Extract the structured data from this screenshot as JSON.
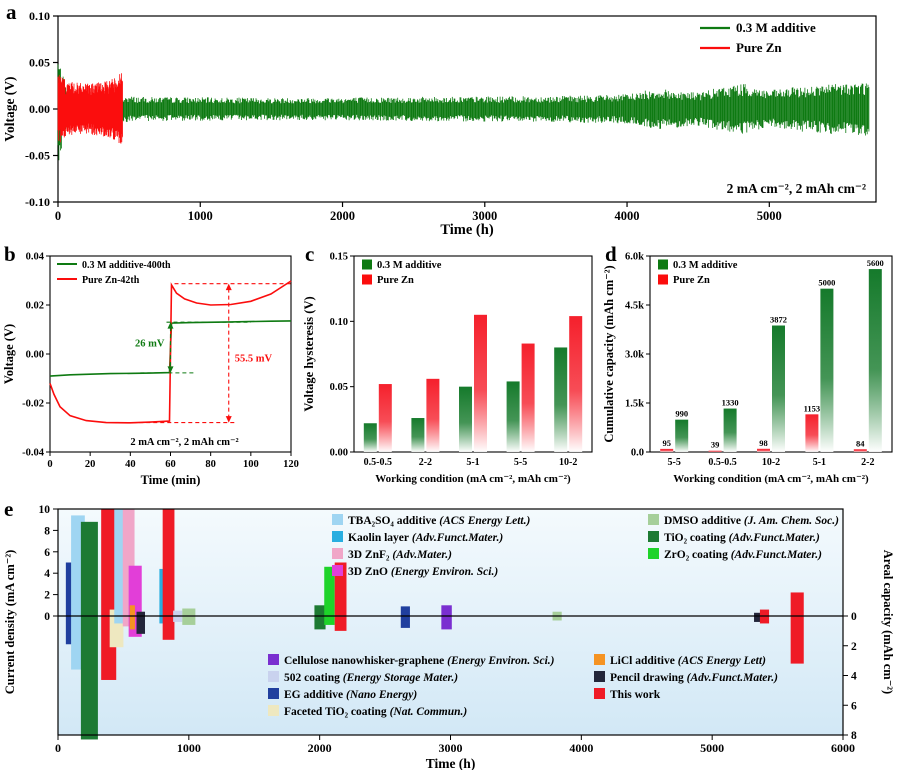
{
  "panel_letters": {
    "a": "a",
    "b": "b",
    "c": "c",
    "d": "d",
    "e": "e"
  },
  "chart_data": [
    {
      "id": "a",
      "type": "line",
      "xlabel": "Time (h)",
      "ylabel": "Voltage (V)",
      "xlim": [
        0,
        5750
      ],
      "ylim": [
        -0.1,
        0.1
      ],
      "xticks": [
        0,
        1000,
        2000,
        3000,
        4000,
        5000
      ],
      "yticks": [
        0.1,
        0.05,
        0.0,
        -0.05,
        -0.1
      ],
      "legend": [
        {
          "label": "0.3 M additive",
          "color": "#0e7a12"
        },
        {
          "label": "Pure Zn",
          "color": "#fb0d0d"
        }
      ],
      "annotation": "2 mA cm⁻², 2 mAh cm⁻²",
      "series": [
        {
          "name": "0.3 M additive",
          "color": "#0e7a12",
          "envelope": [
            [
              0,
              0.06
            ],
            [
              20,
              0.045
            ],
            [
              60,
              0.02
            ],
            [
              150,
              0.017
            ],
            [
              400,
              0.015
            ],
            [
              600,
              0.013
            ],
            [
              1500,
              0.012
            ],
            [
              2500,
              0.013
            ],
            [
              3500,
              0.014
            ],
            [
              4000,
              0.016
            ],
            [
              4200,
              0.022
            ],
            [
              4500,
              0.018
            ],
            [
              4800,
              0.028
            ],
            [
              5000,
              0.02
            ],
            [
              5200,
              0.024
            ],
            [
              5500,
              0.028
            ],
            [
              5700,
              0.03
            ]
          ]
        },
        {
          "name": "Pure Zn",
          "color": "#fb0d0d",
          "envelope": [
            [
              0,
              0.04
            ],
            [
              60,
              0.03
            ],
            [
              200,
              0.027
            ],
            [
              350,
              0.03
            ],
            [
              430,
              0.038
            ],
            [
              455,
              0.042
            ]
          ]
        }
      ]
    },
    {
      "id": "b",
      "type": "line",
      "xlabel": "Time (min)",
      "ylabel": "Voltage (V)",
      "xlim": [
        0,
        120
      ],
      "ylim": [
        -0.04,
        0.04
      ],
      "xticks": [
        0,
        20,
        40,
        60,
        80,
        100,
        120
      ],
      "yticks": [
        0.04,
        0.02,
        0.0,
        -0.02,
        -0.04
      ],
      "legend": [
        {
          "label": "0.3 M additive-400th",
          "color": "#0e7a12"
        },
        {
          "label": "Pure Zn-42th",
          "color": "#fb0d0d"
        }
      ],
      "annotation": "2 mA cm⁻², 2 mAh cm⁻²",
      "annotations": {
        "green_gap": "26 mV",
        "red_gap": "55.5 mV"
      },
      "series": [
        {
          "name": "0.3 M additive-400th",
          "color": "#0e7a12",
          "points": [
            [
              0,
              -0.009
            ],
            [
              10,
              -0.0085
            ],
            [
              30,
              -0.008
            ],
            [
              50,
              -0.0078
            ],
            [
              59.5,
              -0.0076
            ],
            [
              60.5,
              0.0126
            ],
            [
              70,
              0.0128
            ],
            [
              90,
              0.0131
            ],
            [
              110,
              0.0134
            ],
            [
              120,
              0.0135
            ]
          ]
        },
        {
          "name": "Pure Zn-42th",
          "color": "#fb0d0d",
          "points": [
            [
              0,
              -0.012
            ],
            [
              2,
              -0.0165
            ],
            [
              5,
              -0.0215
            ],
            [
              10,
              -0.0252
            ],
            [
              18,
              -0.0272
            ],
            [
              28,
              -0.028
            ],
            [
              40,
              -0.0281
            ],
            [
              50,
              -0.0278
            ],
            [
              59.5,
              -0.0274
            ],
            [
              60.5,
              0.0282
            ],
            [
              63,
              0.0248
            ],
            [
              67,
              0.0225
            ],
            [
              73,
              0.0208
            ],
            [
              80,
              0.02
            ],
            [
              90,
              0.0202
            ],
            [
              100,
              0.0215
            ],
            [
              110,
              0.0245
            ],
            [
              120,
              0.0298
            ]
          ]
        }
      ]
    },
    {
      "id": "c",
      "type": "bar",
      "xlabel": "Working condition (mA cm⁻², mAh cm⁻²)",
      "ylabel": "Voltage hysteresis (V)",
      "categories": [
        "0.5-0.5",
        "2-2",
        "5-1",
        "5-5",
        "10-2"
      ],
      "ylim": [
        0,
        0.15
      ],
      "yticks": [
        0.0,
        0.05,
        0.1,
        0.15
      ],
      "legend": [
        {
          "label": "0.3 M additive",
          "color": "#0e7a12"
        },
        {
          "label": "Pure Zn",
          "color": "#fb0d0d"
        }
      ],
      "series": [
        {
          "name": "0.3 M additive",
          "color": "#157a2b",
          "values": [
            0.022,
            0.026,
            0.05,
            0.054,
            0.08
          ]
        },
        {
          "name": "Pure Zn",
          "color": "#f5202c",
          "values": [
            0.052,
            0.056,
            0.105,
            0.083,
            0.104
          ]
        }
      ]
    },
    {
      "id": "d",
      "type": "bar",
      "xlabel": "Working condition (mA cm⁻², mAh cm⁻²)",
      "ylabel": "Cumulative capacity (mAh cm⁻²)",
      "categories": [
        "5-5",
        "0.5-0.5",
        "10-2",
        "5-1",
        "2-2"
      ],
      "ylim": [
        0,
        6000
      ],
      "yticks": [
        0,
        1500,
        3000,
        4500,
        6000
      ],
      "ytick_labels": [
        "0.0",
        "1.5k",
        "3.0k",
        "4.5k",
        "6.0k"
      ],
      "show_values": true,
      "legend": [
        {
          "label": "0.3 M additive",
          "color": "#0e7a12"
        },
        {
          "label": "Pure Zn",
          "color": "#fb0d0d"
        }
      ],
      "series": [
        {
          "name": "Pure Zn",
          "color": "#f5202c",
          "values": [
            95,
            39,
            98,
            1153,
            84
          ]
        },
        {
          "name": "0.3 M additive",
          "color": "#157a2b",
          "values": [
            990,
            1330,
            3872,
            5000,
            5600
          ]
        }
      ]
    },
    {
      "id": "e",
      "type": "bar-span",
      "xlabel": "Time (h)",
      "ylabel_left": "Current density (mA cm⁻²)",
      "ylabel_right": "Areal capacity (mAh cm⁻²)",
      "xlim": [
        0,
        6000
      ],
      "xticks": [
        0,
        1000,
        2000,
        3000,
        4000,
        5000,
        6000
      ],
      "left_ticks": [
        0,
        2,
        4,
        6,
        8,
        10
      ],
      "right_ticks": [
        0,
        2,
        4,
        6,
        8
      ],
      "colors": {
        "tba2so4": "#9fd5f2",
        "kaolin": "#29aee0",
        "znf2": "#f0a6c8",
        "zno": "#e23ed8",
        "dmso": "#a6cf9a",
        "tio2": "#1d7a33",
        "zro2": "#1ed32a",
        "cellulose": "#7a2fd0",
        "coating502": "#c9d2ee",
        "eg": "#203f9e",
        "faceted_tio2": "#eee8c0",
        "licl": "#f59322",
        "pencil": "#23263a",
        "this_work": "#ef1b26"
      },
      "bars": [
        {
          "ref": "eg",
          "x": [
            60,
            160
          ],
          "current": 5.0,
          "capacity": 1.9
        },
        {
          "ref": "tba2so4",
          "x": [
            100,
            205
          ],
          "current": 9.4,
          "capacity": 3.6
        },
        {
          "ref": "tio2",
          "x": [
            175,
            305
          ],
          "current": 8.8,
          "capacity": 8.3
        },
        {
          "ref": "this_work",
          "x": [
            330,
            445
          ],
          "current": 10,
          "capacity": 4.3
        },
        {
          "ref": "faceted_tio2",
          "x": [
            395,
            500
          ],
          "current": 0.6,
          "capacity": 2.1
        },
        {
          "ref": "tba2so4",
          "x": [
            430,
            520
          ],
          "current": 10,
          "capacity": 0.5
        },
        {
          "ref": "znf2",
          "x": [
            495,
            585
          ],
          "current": 10,
          "capacity": 0.7
        },
        {
          "ref": "zno",
          "x": [
            540,
            640
          ],
          "current": 4.7,
          "capacity": 1.4
        },
        {
          "ref": "licl",
          "x": [
            548,
            588
          ],
          "current": 1.0,
          "capacity": 0.9
        },
        {
          "ref": "pencil",
          "x": [
            600,
            665
          ],
          "current": 0.4,
          "capacity": 1.2
        },
        {
          "ref": "kaolin",
          "x": [
            775,
            825
          ],
          "current": 4.4,
          "capacity": 0.5
        },
        {
          "ref": "this_work",
          "x": [
            800,
            890
          ],
          "current": 10,
          "capacity": 1.6
        },
        {
          "ref": "coating502",
          "x": [
            880,
            950
          ],
          "current": 0.5,
          "capacity": 0.4
        },
        {
          "ref": "dmso",
          "x": [
            950,
            1050
          ],
          "current": 0.7,
          "capacity": 0.6
        },
        {
          "ref": "tio2",
          "x": [
            1960,
            2045
          ],
          "current": 1.0,
          "capacity": 0.9
        },
        {
          "ref": "zro2",
          "x": [
            2035,
            2115
          ],
          "current": 4.6,
          "capacity": 0.6
        },
        {
          "ref": "this_work",
          "x": [
            2115,
            2205
          ],
          "current": 5.0,
          "capacity": 1.0
        },
        {
          "ref": "eg",
          "x": [
            2620,
            2690
          ],
          "current": 0.9,
          "capacity": 0.8
        },
        {
          "ref": "cellulose",
          "x": [
            2930,
            3010
          ],
          "current": 1.0,
          "capacity": 0.9
        },
        {
          "ref": "dmso",
          "x": [
            3780,
            3850
          ],
          "current": 0.4,
          "capacity": 0.3
        },
        {
          "ref": "pencil",
          "x": [
            5320,
            5368
          ],
          "current": 0.3,
          "capacity": 0.4
        },
        {
          "ref": "this_work",
          "x": [
            5365,
            5435
          ],
          "current": 0.6,
          "capacity": 0.5
        },
        {
          "ref": "this_work",
          "x": [
            5600,
            5700
          ],
          "current": 2.2,
          "capacity": 3.2
        }
      ],
      "legend_groups": {
        "top_left": [
          {
            "ref": "tba2so4",
            "name": "TBA₂SO₄ additive",
            "journal": "ACS Energy Lett."
          },
          {
            "ref": "kaolin",
            "name": "Kaolin layer",
            "journal": "Adv.Funct.Mater."
          },
          {
            "ref": "znf2",
            "name": "3D ZnF₂",
            "journal": "Adv.Mater."
          },
          {
            "ref": "zno",
            "name": "3D ZnO",
            "journal": "Energy Environ. Sci."
          }
        ],
        "top_right": [
          {
            "ref": "dmso",
            "name": "DMSO additive",
            "journal": "J. Am. Chem. Soc."
          },
          {
            "ref": "tio2",
            "name": "TiO₂ coating",
            "journal": "Adv.Funct.Mater."
          },
          {
            "ref": "zro2",
            "name": "ZrO₂ coating",
            "journal": "Adv.Funct.Mater."
          }
        ],
        "bottom_left": [
          {
            "ref": "cellulose",
            "name": "Cellulose nanowhisker-graphene",
            "journal": "Energy Environ. Sci."
          },
          {
            "ref": "coating502",
            "name": "502 coating",
            "journal": "Energy Storage Mater."
          },
          {
            "ref": "eg",
            "name": "EG additive",
            "journal": "Nano Energy"
          },
          {
            "ref": "faceted_tio2",
            "name": "Faceted TiO₂ coating",
            "journal": "Nat. Commun."
          }
        ],
        "bottom_right": [
          {
            "ref": "licl",
            "name": "LiCl additive",
            "journal": "ACS Energy Lett"
          },
          {
            "ref": "pencil",
            "name": "Pencil drawing",
            "journal": "Adv.Funct.Mater."
          },
          {
            "ref": "this_work",
            "name": "This work",
            "journal": ""
          }
        ]
      }
    }
  ]
}
